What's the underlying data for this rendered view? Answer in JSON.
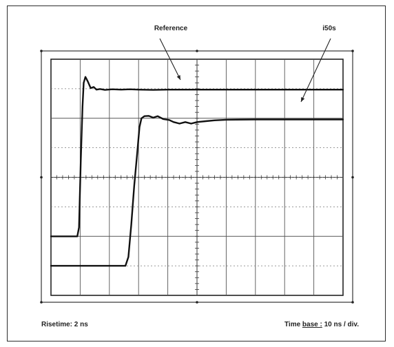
{
  "chart_data": {
    "type": "line",
    "x_units": "ns",
    "xlim": [
      0,
      100
    ],
    "ylim": [
      -4,
      4
    ],
    "grid": true,
    "annotations": [
      {
        "name": "reference-callout",
        "text": "Reference"
      },
      {
        "name": "i50s-callout",
        "text": "i50s"
      }
    ],
    "series": [
      {
        "name": "Reference",
        "points": [
          [
            0,
            -2.0
          ],
          [
            9.0,
            -2.0
          ],
          [
            9.6,
            -1.7
          ],
          [
            10.2,
            0.5
          ],
          [
            10.8,
            2.4
          ],
          [
            11.2,
            3.2
          ],
          [
            11.8,
            3.4
          ],
          [
            12.6,
            3.25
          ],
          [
            13.6,
            3.02
          ],
          [
            14.6,
            3.06
          ],
          [
            15.6,
            2.97
          ],
          [
            16.8,
            2.99
          ],
          [
            18.5,
            2.96
          ],
          [
            21,
            2.98
          ],
          [
            24,
            2.97
          ],
          [
            27,
            2.98
          ],
          [
            30,
            2.97
          ],
          [
            35,
            2.96
          ],
          [
            40,
            2.97
          ],
          [
            50,
            2.97
          ],
          [
            60,
            2.97
          ],
          [
            70,
            2.97
          ],
          [
            80,
            2.97
          ],
          [
            90,
            2.97
          ],
          [
            100,
            2.97
          ]
        ]
      },
      {
        "name": "",
        "points": [
          [
            0,
            -3.0
          ],
          [
            25.5,
            -3.0
          ],
          [
            26.5,
            -2.7
          ],
          [
            27.5,
            -1.6
          ],
          [
            28.5,
            -0.3
          ],
          [
            29.5,
            0.8
          ],
          [
            30.3,
            1.7
          ],
          [
            31.0,
            2.0
          ],
          [
            32,
            2.07
          ],
          [
            33.5,
            2.08
          ],
          [
            35,
            2.02
          ],
          [
            36.5,
            2.07
          ],
          [
            38.5,
            1.97
          ],
          [
            40.5,
            1.94
          ],
          [
            42,
            1.87
          ],
          [
            44,
            1.82
          ],
          [
            46,
            1.87
          ],
          [
            48,
            1.82
          ],
          [
            50,
            1.87
          ],
          [
            53,
            1.9
          ],
          [
            56,
            1.93
          ],
          [
            60,
            1.95
          ],
          [
            70,
            1.96
          ],
          [
            80,
            1.96
          ],
          [
            90,
            1.96
          ],
          [
            100,
            1.96
          ]
        ]
      }
    ],
    "footer_left": "Risetime: 2 ns",
    "footer_right_prefix": "Time ",
    "footer_right_underlined": "base :",
    "footer_right_suffix": " 10 ns / div."
  }
}
